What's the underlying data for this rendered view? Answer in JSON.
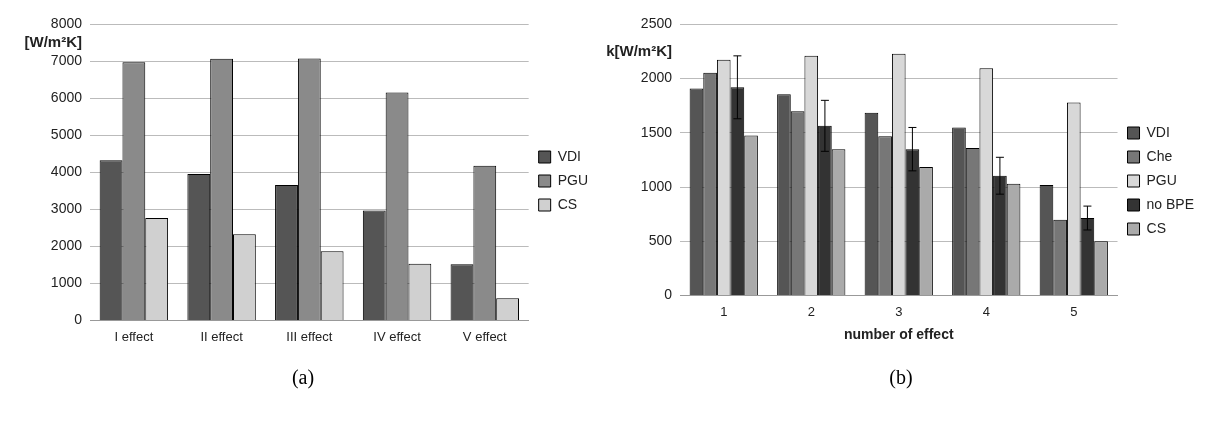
{
  "chart_data": [
    {
      "type": "bar",
      "ylabel": "[W/m²K]",
      "categories": [
        "I effect",
        "II effect",
        "III effect",
        "IV effect",
        "V effect"
      ],
      "series": [
        {
          "name": "VDI",
          "color": "#555555",
          "values": [
            4330,
            3960,
            3660,
            2970,
            1520
          ]
        },
        {
          "name": "PGU",
          "color": "#8a8a8a",
          "values": [
            6980,
            7070,
            7080,
            6160,
            4180
          ]
        },
        {
          "name": "CS",
          "color": "#d0d0d0",
          "values": [
            2770,
            2330,
            1870,
            1530,
            600
          ]
        }
      ],
      "ylim": [
        0,
        8000
      ],
      "yticks": [
        0,
        1000,
        2000,
        3000,
        4000,
        5000,
        6000,
        7000,
        8000
      ],
      "grid": "y",
      "legend": "right",
      "annotations": [
        "(a)"
      ]
    },
    {
      "type": "bar",
      "ylabel": "k[W/m²K]",
      "xlabel": "number of effect",
      "categories": [
        "1",
        "2",
        "3",
        "4",
        "5"
      ],
      "series": [
        {
          "name": "VDI",
          "color": "#555555",
          "values": [
            1910,
            1855,
            1685,
            1550,
            1020
          ]
        },
        {
          "name": "Che",
          "color": "#777777",
          "values": [
            2055,
            1700,
            1470,
            1360,
            700
          ]
        },
        {
          "name": "PGU",
          "color": "#d8d8d8",
          "values": [
            2175,
            2210,
            2230,
            2095,
            1780
          ]
        },
        {
          "name": "no BPE",
          "color": "#333333",
          "values": [
            1920,
            1565,
            1350,
            1105,
            715
          ],
          "errors": [
            290,
            235,
            200,
            170,
            110
          ]
        },
        {
          "name": "CS",
          "color": "#aaaaaa",
          "values": [
            1475,
            1350,
            1185,
            1030,
            500
          ]
        }
      ],
      "ylim": [
        0,
        2500
      ],
      "yticks": [
        0,
        500,
        1000,
        1500,
        2000,
        2500
      ],
      "grid": "y",
      "legend": "right",
      "annotations": [
        "(b)"
      ]
    }
  ]
}
